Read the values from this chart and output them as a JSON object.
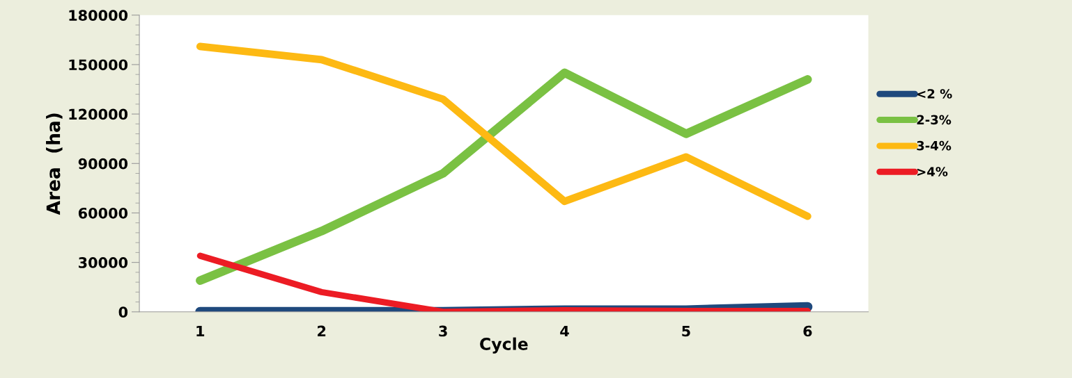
{
  "chart_data": {
    "type": "line",
    "xlabel": "Cycle",
    "ylabel": "Area  (ha)",
    "categories": [
      "1",
      "2",
      "3",
      "4",
      "5",
      "6"
    ],
    "series": [
      {
        "name": "<2 %",
        "color": "#1f497d",
        "values": [
          0,
          0,
          0,
          1000,
          1000,
          3000
        ]
      },
      {
        "name": "2-3%",
        "color": "#7ac143",
        "values": [
          19000,
          49000,
          84000,
          145000,
          108000,
          141000
        ]
      },
      {
        "name": "3-4%",
        "color": "#fdb913",
        "values": [
          161000,
          153000,
          129000,
          67000,
          94000,
          58000
        ]
      },
      {
        "name": ">4%",
        "color": "#ec1c24",
        "values": [
          34000,
          12000,
          0,
          1000,
          500,
          500
        ]
      }
    ],
    "ylim": [
      0,
      180000
    ],
    "yticks": [
      0,
      30000,
      60000,
      90000,
      120000,
      150000,
      180000
    ],
    "grid": false,
    "legend": "right",
    "marker": "none",
    "line_style": "solid"
  }
}
